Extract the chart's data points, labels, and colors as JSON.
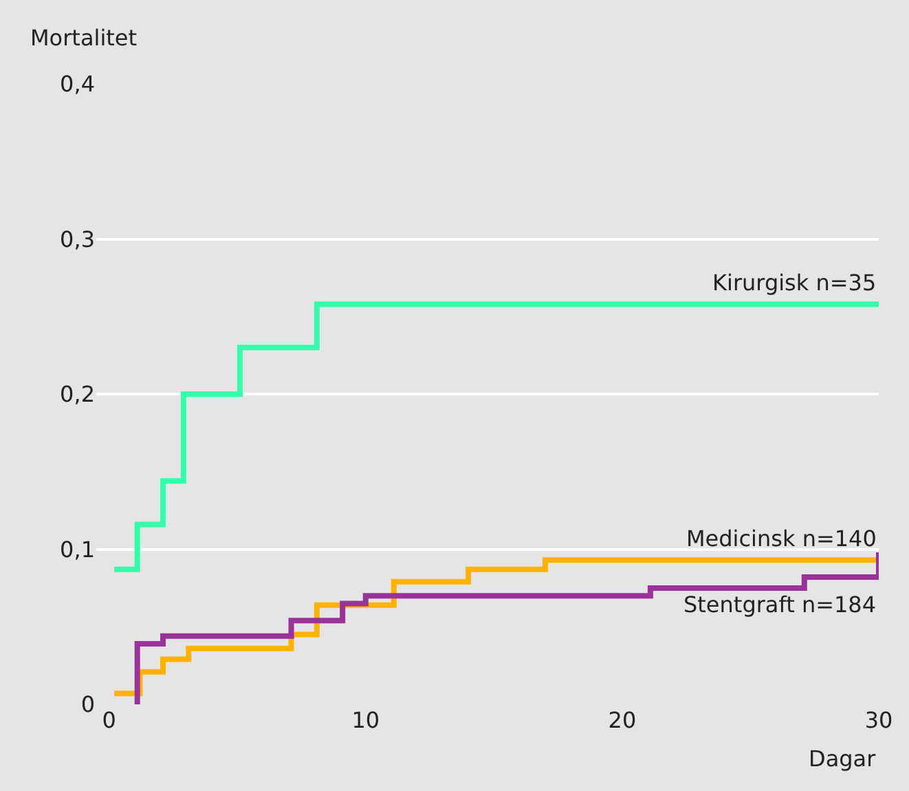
{
  "chart_data": {
    "type": "step",
    "ylabel": "Mortalitet",
    "xlabel": "Dagar",
    "xlim": [
      -0.5,
      30
    ],
    "ylim": [
      0,
      0.4
    ],
    "xticks": [
      0,
      10,
      20,
      30
    ],
    "yticks": [
      {
        "value": 0,
        "label": "0"
      },
      {
        "value": 0.1,
        "label": "0,1"
      },
      {
        "value": 0.2,
        "label": "0,2"
      },
      {
        "value": 0.3,
        "label": "0,3"
      },
      {
        "value": 0.4,
        "label": "0,4"
      }
    ],
    "grid": "y",
    "legend": false,
    "marker": "none",
    "line_style": "solid",
    "series": [
      {
        "name": "Kirurgisk n=35",
        "color": "#33ffaa",
        "x": [
          0.2,
          1.1,
          2.1,
          2.9,
          5.1,
          8.1,
          30
        ],
        "values": [
          0.087,
          0.116,
          0.144,
          0.2,
          0.23,
          0.258,
          0.258
        ]
      },
      {
        "name": "Medicinsk n=140",
        "color": "#ffb300",
        "x": [
          0.2,
          1.2,
          2.1,
          3.1,
          7.1,
          8.1,
          11.1,
          14.0,
          17.0,
          30
        ],
        "values": [
          0.007,
          0.021,
          0.029,
          0.036,
          0.045,
          0.064,
          0.079,
          0.087,
          0.093,
          0.093
        ]
      },
      {
        "name": "Stentgraft n=184",
        "color": "#993399",
        "x": [
          1.1,
          1.1,
          2.1,
          7.1,
          9.1,
          10.0,
          21.1,
          27.1,
          30,
          30
        ],
        "values": [
          0,
          0.039,
          0.044,
          0.054,
          0.065,
          0.07,
          0.075,
          0.082,
          0.082,
          0.098
        ]
      }
    ]
  }
}
